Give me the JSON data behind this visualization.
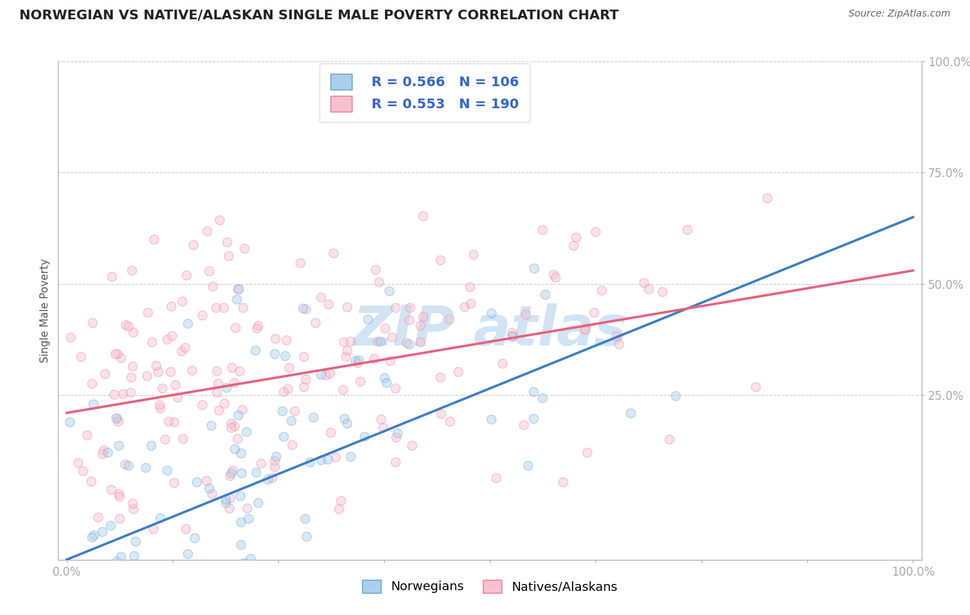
{
  "title": "NORWEGIAN VS NATIVE/ALASKAN SINGLE MALE POVERTY CORRELATION CHART",
  "source": "Source: ZipAtlas.com",
  "ylabel": "Single Male Poverty",
  "color_norwegian_fill": "#AACFED",
  "color_norwegian_edge": "#5A9FD4",
  "color_native_fill": "#F9C0CE",
  "color_native_edge": "#E8789A",
  "color_line_norwegian": "#3A7EC6",
  "color_line_native": "#E8607A",
  "color_r_n_text": "#3366CC",
  "color_title": "#222222",
  "color_source": "#666666",
  "color_tick": "#3366CC",
  "watermark_color": "#D0E4F4",
  "grid_color": "#CCCCCC",
  "legend_r1": "0.566",
  "legend_n1": "106",
  "legend_r2": "0.553",
  "legend_n2": "190",
  "legend_label1": "Norwegians",
  "legend_label2": "Natives/Alaskans",
  "R_norwegian": 0.566,
  "R_native": 0.553,
  "N_norwegian": 106,
  "N_native": 190,
  "norwegian_seed": 12,
  "native_seed": 55,
  "background_color": "#FFFFFF",
  "scatter_alpha": 0.45,
  "scatter_size": 90
}
